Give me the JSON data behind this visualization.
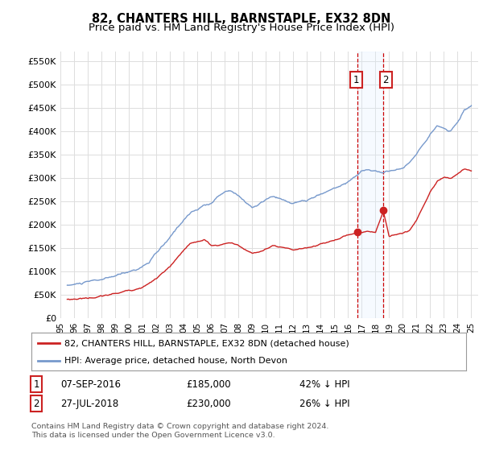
{
  "title": "82, CHANTERS HILL, BARNSTAPLE, EX32 8DN",
  "subtitle": "Price paid vs. HM Land Registry's House Price Index (HPI)",
  "ylim": [
    0,
    570000
  ],
  "yticks": [
    0,
    50000,
    100000,
    150000,
    200000,
    250000,
    300000,
    350000,
    400000,
    450000,
    500000,
    550000
  ],
  "xlim_start": 1995.5,
  "xlim_end": 2025.5,
  "hpi_color": "#7799cc",
  "price_color": "#cc2222",
  "vline_color": "#cc0000",
  "shade_color": "#ddeeff",
  "sale1_x": 2016.69,
  "sale1_y": 185000,
  "sale2_x": 2018.58,
  "sale2_y": 230000,
  "legend_label1": "82, CHANTERS HILL, BARNSTAPLE, EX32 8DN (detached house)",
  "legend_label2": "HPI: Average price, detached house, North Devon",
  "table_row1": [
    "1",
    "07-SEP-2016",
    "£185,000",
    "42% ↓ HPI"
  ],
  "table_row2": [
    "2",
    "27-JUL-2018",
    "£230,000",
    "26% ↓ HPI"
  ],
  "footer": "Contains HM Land Registry data © Crown copyright and database right 2024.\nThis data is licensed under the Open Government Licence v3.0.",
  "bg_color": "#ffffff",
  "grid_color": "#dddddd",
  "title_fontsize": 10.5,
  "subtitle_fontsize": 9.5,
  "tick_fontsize": 8
}
